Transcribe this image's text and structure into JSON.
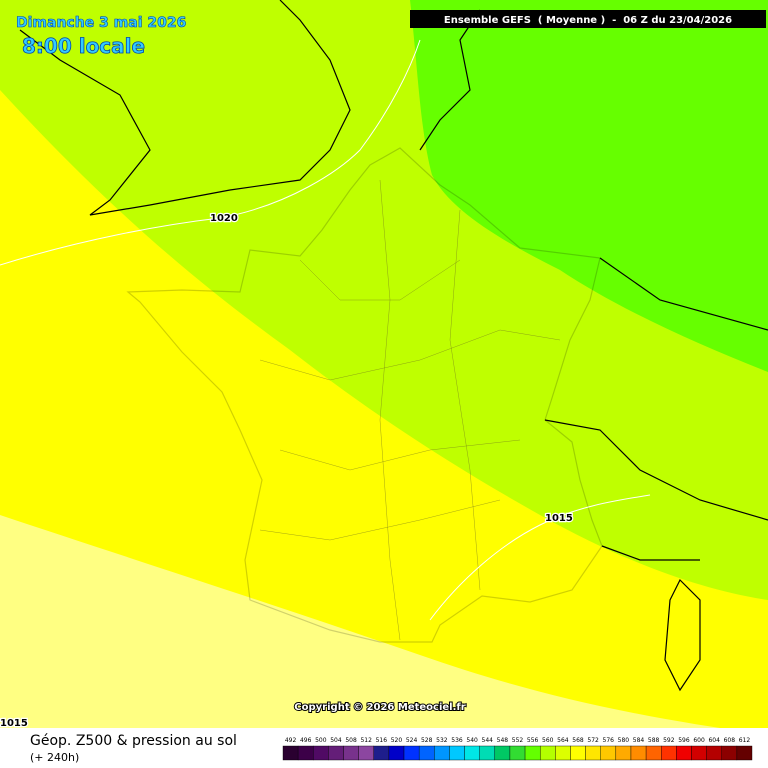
{
  "header": {
    "date": "Dimanche 3 mai 2026",
    "time": "8:00 locale",
    "model": "Ensemble GEFS  ( Moyenne )  -  06 Z du 23/04/2026"
  },
  "isobars": [
    {
      "label": "1020"
    },
    {
      "label": "1015"
    },
    {
      "label": "1015"
    }
  ],
  "copyright": "Copyright © 2026 Meteociel.fr",
  "footer": {
    "title": "Géop. Z500 & pression au sol",
    "lead": "(+ 240h)"
  },
  "legend": {
    "labels": [
      492,
      496,
      500,
      504,
      508,
      512,
      516,
      520,
      524,
      528,
      532,
      536,
      540,
      544,
      548,
      552,
      556,
      560,
      564,
      568,
      572,
      576,
      580,
      584,
      588,
      592,
      596,
      600,
      604,
      608,
      612
    ],
    "colors": [
      "#2a0030",
      "#3c0048",
      "#500a64",
      "#641e78",
      "#78328c",
      "#8c46a0",
      "#1e1e8c",
      "#0000c8",
      "#0032ff",
      "#0064ff",
      "#0096ff",
      "#00c8ff",
      "#00e6e6",
      "#00dcb4",
      "#00c864",
      "#32dc32",
      "#64ff00",
      "#b4ff00",
      "#dcff00",
      "#ffff00",
      "#ffe600",
      "#ffc800",
      "#ffaa00",
      "#ff8c00",
      "#ff6400",
      "#ff3200",
      "#f00000",
      "#d20000",
      "#b40000",
      "#8c0000",
      "#640000"
    ]
  }
}
